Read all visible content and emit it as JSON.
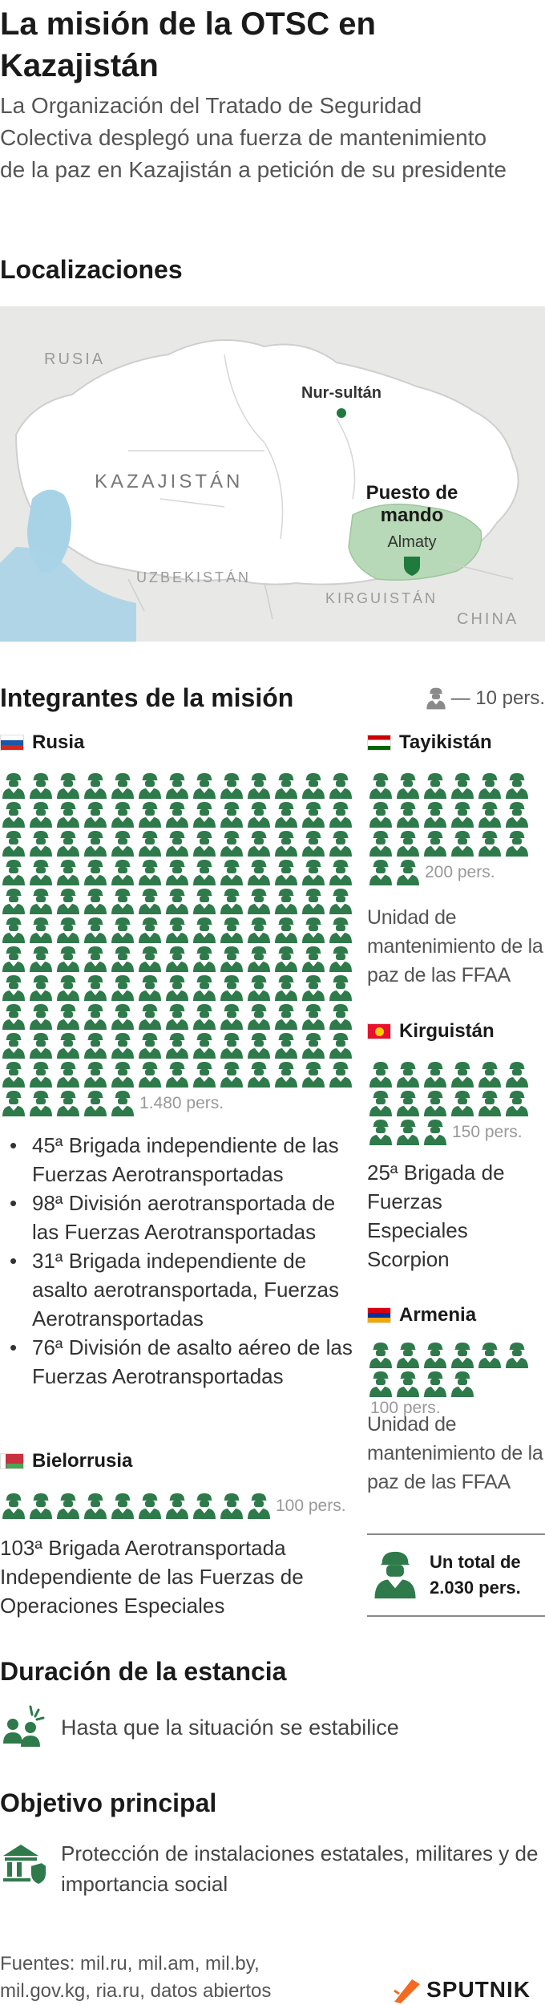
{
  "title": "La misión de la OTSC en Kazajistán",
  "subtitle": "La Organización del Tratado de Seguridad Colectiva desplegó una fuerza de mantenimiento de la paz en Kazajistán a petición de su presidente",
  "locations": {
    "heading": "Localizaciones",
    "map_labels": {
      "russia": "RUSIA",
      "kazakhstan": "KAZAJISTÁN",
      "capital": "Nur-sultán",
      "command_post": [
        "Puesto de",
        "mando"
      ],
      "almaty": "Almaty",
      "uzbekistan": "UZBEKISTÁN",
      "kyrgyzstan": "KIRGUISTÁN",
      "china": "CHINA"
    }
  },
  "members": {
    "heading": "Integrantes de la misión",
    "legend": "— 10 pers.",
    "colors": {
      "soldier": "#2e7a4a",
      "map_highlight": "#b7d9b7"
    },
    "icons": {
      "soldier": "soldier-icon",
      "total": "soldier-large-icon"
    },
    "russia": {
      "name": "Rusia",
      "icons": 148,
      "count_label": "1.480 pers.",
      "units": [
        "45ª Brigada independiente de las Fuerzas Aerotransportadas",
        "98ª División aerotransportada de las Fuerzas Aerotransportadas",
        "31ª Brigada independiente de asalto aerotransportada, Fuerzas Aerotransportadas",
        "76ª División de asalto aéreo de las Fuerzas Aerotransportadas"
      ]
    },
    "belarus": {
      "name": "Bielorrusia",
      "icons": 10,
      "count_label": "100 pers.",
      "unit": "103ª Brigada Aerotransportada Independiente de las Fuerzas de Operaciones Especiales"
    },
    "tajikistan": {
      "name": "Tayikistán",
      "icons": 20,
      "count_label": "200 pers.",
      "unit": "Unidad de mantenimiento de la paz de las FFAA"
    },
    "kyrgyzstan": {
      "name": "Kirguistán",
      "icons": 15,
      "count_label": "150 pers.",
      "unit": "25ª Brigada de Fuerzas Especiales Scorpion"
    },
    "armenia": {
      "name": "Armenia",
      "icons": 10,
      "count_label": "100 pers.",
      "unit": "Unidad de mantenimiento de la paz de las FFAA"
    },
    "total": [
      "Un total de",
      "2.030 pers."
    ]
  },
  "duration": {
    "heading": "Duración de la estancia",
    "text": "Hasta que la situación se estabilice",
    "icon": "people-unrest-icon"
  },
  "objective": {
    "heading": "Objetivo principal",
    "text": "Protección de instalaciones estatales, militares y de importancia social",
    "icon": "building-shield-icon"
  },
  "footer": {
    "sources": "Fuentes: mil.ru, mil.am, mil.by, mil.gov.kg, ria.ru, datos abiertos",
    "logo": "SPUTNIK"
  }
}
